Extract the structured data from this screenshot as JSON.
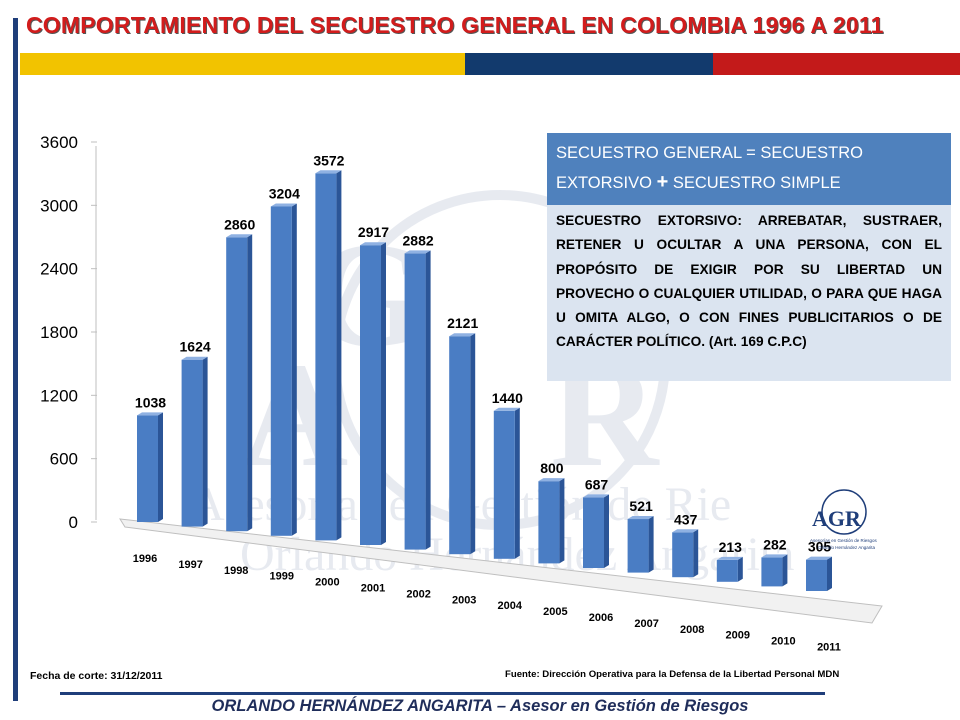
{
  "title": "COMPORTAMIENTO DEL SECUESTRO GENERAL EN COLOMBIA 1996  A  2011",
  "info": {
    "head_line1": "SECUESTRO GENERAL = SECUESTRO",
    "head_line2a": "EXTORSIVO",
    "head_plus": "+",
    "head_line2b": "SECUESTRO SIMPLE",
    "body": "SECUESTRO EXTORSIVO: ARREBATAR, SUSTRAER, RETENER U OCULTAR A UNA PERSONA, CON EL PROPÓSITO DE EXIGIR POR SU LIBERTAD UN PROVECHO O CUALQUIER UTILIDAD, O PARA QUE HAGA U OMITA ALGO, O CON FINES PUBLICITARIOS O DE CARÁCTER POLÍTICO.    (Art. 169 C.P.C)"
  },
  "cutoff": "Fecha de corte: 31/12/2011",
  "source": "Fuente: Dirección Operativa para la Defensa de la Libertad Personal MDN",
  "footer": "ORLANDO HERNÁNDEZ ANGARITA – Asesor en Gestión de Riesgos",
  "logo": {
    "letters": "AGR",
    "caption1": "Asesorías en Gestión de Riesgos",
    "caption2": "Orlando Hernández Angarita"
  },
  "watermark": {
    "line1": "Asesorías en Gestión de Rie",
    "line2": "Orlando Hernández Angarita"
  },
  "colors": {
    "bar": "#4a7dc4",
    "bar_side": "#2b5597",
    "bar_top": "#8fb1e2",
    "title": "#d21c1c"
  },
  "chart_data": {
    "type": "bar",
    "title": "COMPORTAMIENTO DEL SECUESTRO GENERAL EN COLOMBIA 1996  A  2011",
    "categories": [
      "1996",
      "1997",
      "1998",
      "1999",
      "2000",
      "2001",
      "2002",
      "2003",
      "2004",
      "2005",
      "2006",
      "2007",
      "2008",
      "2009",
      "2010",
      "2011"
    ],
    "values": [
      1038,
      1624,
      2860,
      3204,
      3572,
      2917,
      2882,
      2121,
      1440,
      800,
      687,
      521,
      437,
      213,
      282,
      305
    ],
    "y_ticks": [
      0,
      600,
      1200,
      1800,
      2400,
      3000,
      3600
    ],
    "ylim": [
      0,
      3600
    ],
    "grid": false,
    "legend": "none",
    "data_labels": true,
    "style": "3d-perspective"
  }
}
